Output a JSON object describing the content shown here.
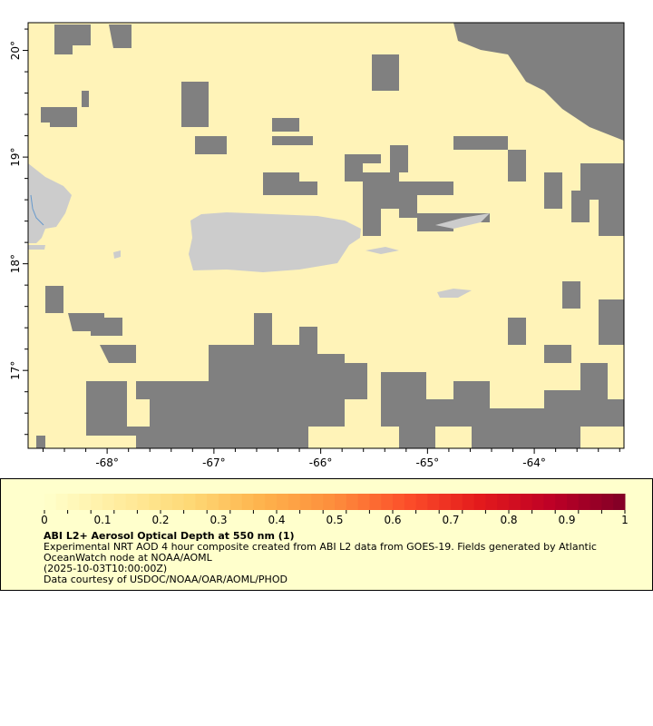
{
  "map": {
    "lon_range": [
      -68.74,
      -63.16
    ],
    "lat_range": [
      16.27,
      20.26
    ],
    "lon_ticks": [
      -68,
      -67,
      -66,
      -65,
      -64
    ],
    "lat_ticks": [
      17,
      18,
      19,
      20
    ],
    "lon_tick_labels": [
      "-68°",
      "-67°",
      "-66°",
      "-65°",
      "-64°"
    ],
    "lat_tick_labels": [
      "17°",
      "18°",
      "19°",
      "20°"
    ],
    "colors": {
      "ocean_low": "#fff3b8",
      "no_data": "#808080",
      "land": "#cccccc",
      "river": "#6699cc"
    }
  },
  "legend": {
    "colorbar_min": 0,
    "colorbar_max": 1,
    "colorbar_labels": [
      "0",
      "0.1",
      "0.2",
      "0.3",
      "0.4",
      "0.5",
      "0.6",
      "0.7",
      "0.8",
      "0.9",
      "1"
    ],
    "colormap": [
      "#ffffcc",
      "#ffeda0",
      "#fed976",
      "#feb24c",
      "#fd8d3c",
      "#fc4e2a",
      "#e31a1c",
      "#bd0026",
      "#800026"
    ],
    "title": "ABI L2+ Aerosol Optical Depth at 550 nm (1)",
    "line1": "Experimental NRT AOD 4 hour composite created from ABI L2 data from GOES-19. Fields generated by Atlantic",
    "line2": "OceanWatch node at NOAA/AOML",
    "line3": "(2025-10-03T10:00:00Z)",
    "line4": "Data courtesy of USDOC/NOAA/OAR/AOML/PHOD"
  }
}
